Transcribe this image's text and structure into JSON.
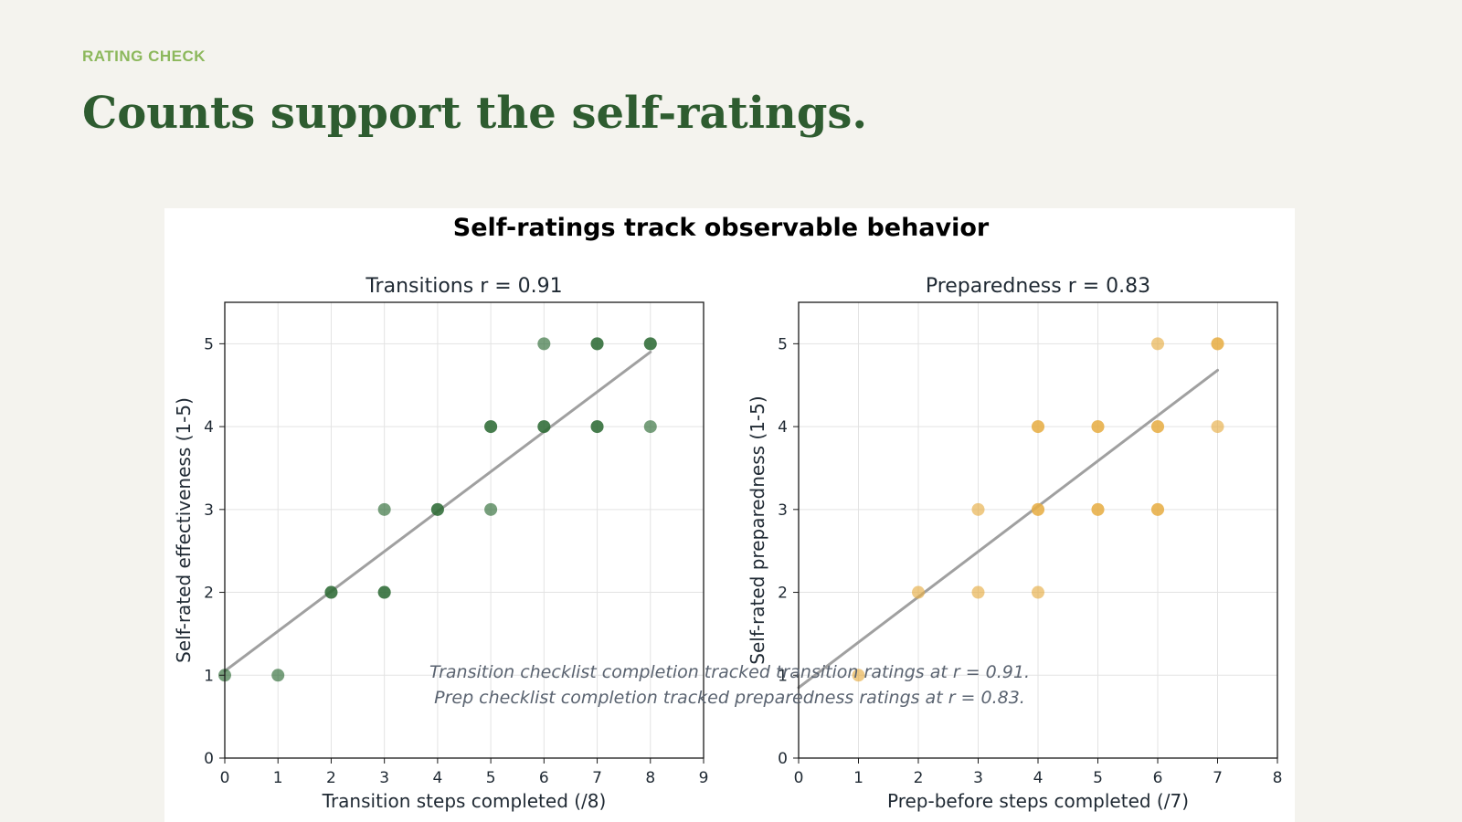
{
  "kicker": "RATING CHECK",
  "headline": "Counts support the self-ratings.",
  "figure_title": "Self-ratings track observable behavior",
  "captions": [
    "Transition checklist completion tracked transition ratings at r = 0.91.",
    "Prep checklist completion tracked preparedness ratings at r = 0.83."
  ],
  "chart_data": [
    {
      "type": "scatter",
      "title": "Transitions  r = 0.91",
      "xlabel": "Transition steps completed (/8)",
      "ylabel": "Self-rated effectiveness (1-5)",
      "xlim": [
        0,
        9
      ],
      "ylim": [
        0,
        5.5
      ],
      "xticks": [
        0,
        1,
        2,
        3,
        4,
        5,
        6,
        7,
        8,
        9
      ],
      "yticks": [
        0,
        1,
        2,
        3,
        4,
        5
      ],
      "grid": true,
      "point_color": "#2e6b35",
      "fit_color": "#a0a0a0",
      "points": [
        {
          "x": 0,
          "y": 1
        },
        {
          "x": 1,
          "y": 1
        },
        {
          "x": 2,
          "y": 2
        },
        {
          "x": 2,
          "y": 2
        },
        {
          "x": 3,
          "y": 2
        },
        {
          "x": 3,
          "y": 2
        },
        {
          "x": 3,
          "y": 3
        },
        {
          "x": 4,
          "y": 3
        },
        {
          "x": 4,
          "y": 3
        },
        {
          "x": 5,
          "y": 3
        },
        {
          "x": 5,
          "y": 4
        },
        {
          "x": 5,
          "y": 4
        },
        {
          "x": 6,
          "y": 4
        },
        {
          "x": 6,
          "y": 4
        },
        {
          "x": 6,
          "y": 5
        },
        {
          "x": 7,
          "y": 4
        },
        {
          "x": 7,
          "y": 4
        },
        {
          "x": 7,
          "y": 5
        },
        {
          "x": 7,
          "y": 5
        },
        {
          "x": 8,
          "y": 4
        },
        {
          "x": 8,
          "y": 5
        },
        {
          "x": 8,
          "y": 5
        }
      ],
      "fit_line": {
        "x": [
          0,
          8
        ],
        "y": [
          1.05,
          4.9
        ]
      }
    },
    {
      "type": "scatter",
      "title": "Preparedness  r = 0.83",
      "xlabel": "Prep-before steps completed (/7)",
      "ylabel": "Self-rated preparedness (1-5)",
      "xlim": [
        0,
        8
      ],
      "ylim": [
        0,
        5.5
      ],
      "xticks": [
        0,
        1,
        2,
        3,
        4,
        5,
        6,
        7,
        8
      ],
      "yticks": [
        0,
        1,
        2,
        3,
        4,
        5
      ],
      "grid": true,
      "point_color": "#e6ad45",
      "fit_color": "#a0a0a0",
      "points": [
        {
          "x": 1,
          "y": 1
        },
        {
          "x": 2,
          "y": 2
        },
        {
          "x": 3,
          "y": 2
        },
        {
          "x": 3,
          "y": 3
        },
        {
          "x": 4,
          "y": 2
        },
        {
          "x": 4,
          "y": 3
        },
        {
          "x": 4,
          "y": 3
        },
        {
          "x": 4,
          "y": 4
        },
        {
          "x": 4,
          "y": 4
        },
        {
          "x": 5,
          "y": 3
        },
        {
          "x": 5,
          "y": 3
        },
        {
          "x": 5,
          "y": 4
        },
        {
          "x": 5,
          "y": 4
        },
        {
          "x": 6,
          "y": 3
        },
        {
          "x": 6,
          "y": 3
        },
        {
          "x": 6,
          "y": 4
        },
        {
          "x": 6,
          "y": 4
        },
        {
          "x": 6,
          "y": 5
        },
        {
          "x": 7,
          "y": 4
        },
        {
          "x": 7,
          "y": 5
        },
        {
          "x": 7,
          "y": 5
        }
      ],
      "fit_line": {
        "x": [
          0,
          7
        ],
        "y": [
          0.85,
          4.68
        ]
      }
    }
  ]
}
